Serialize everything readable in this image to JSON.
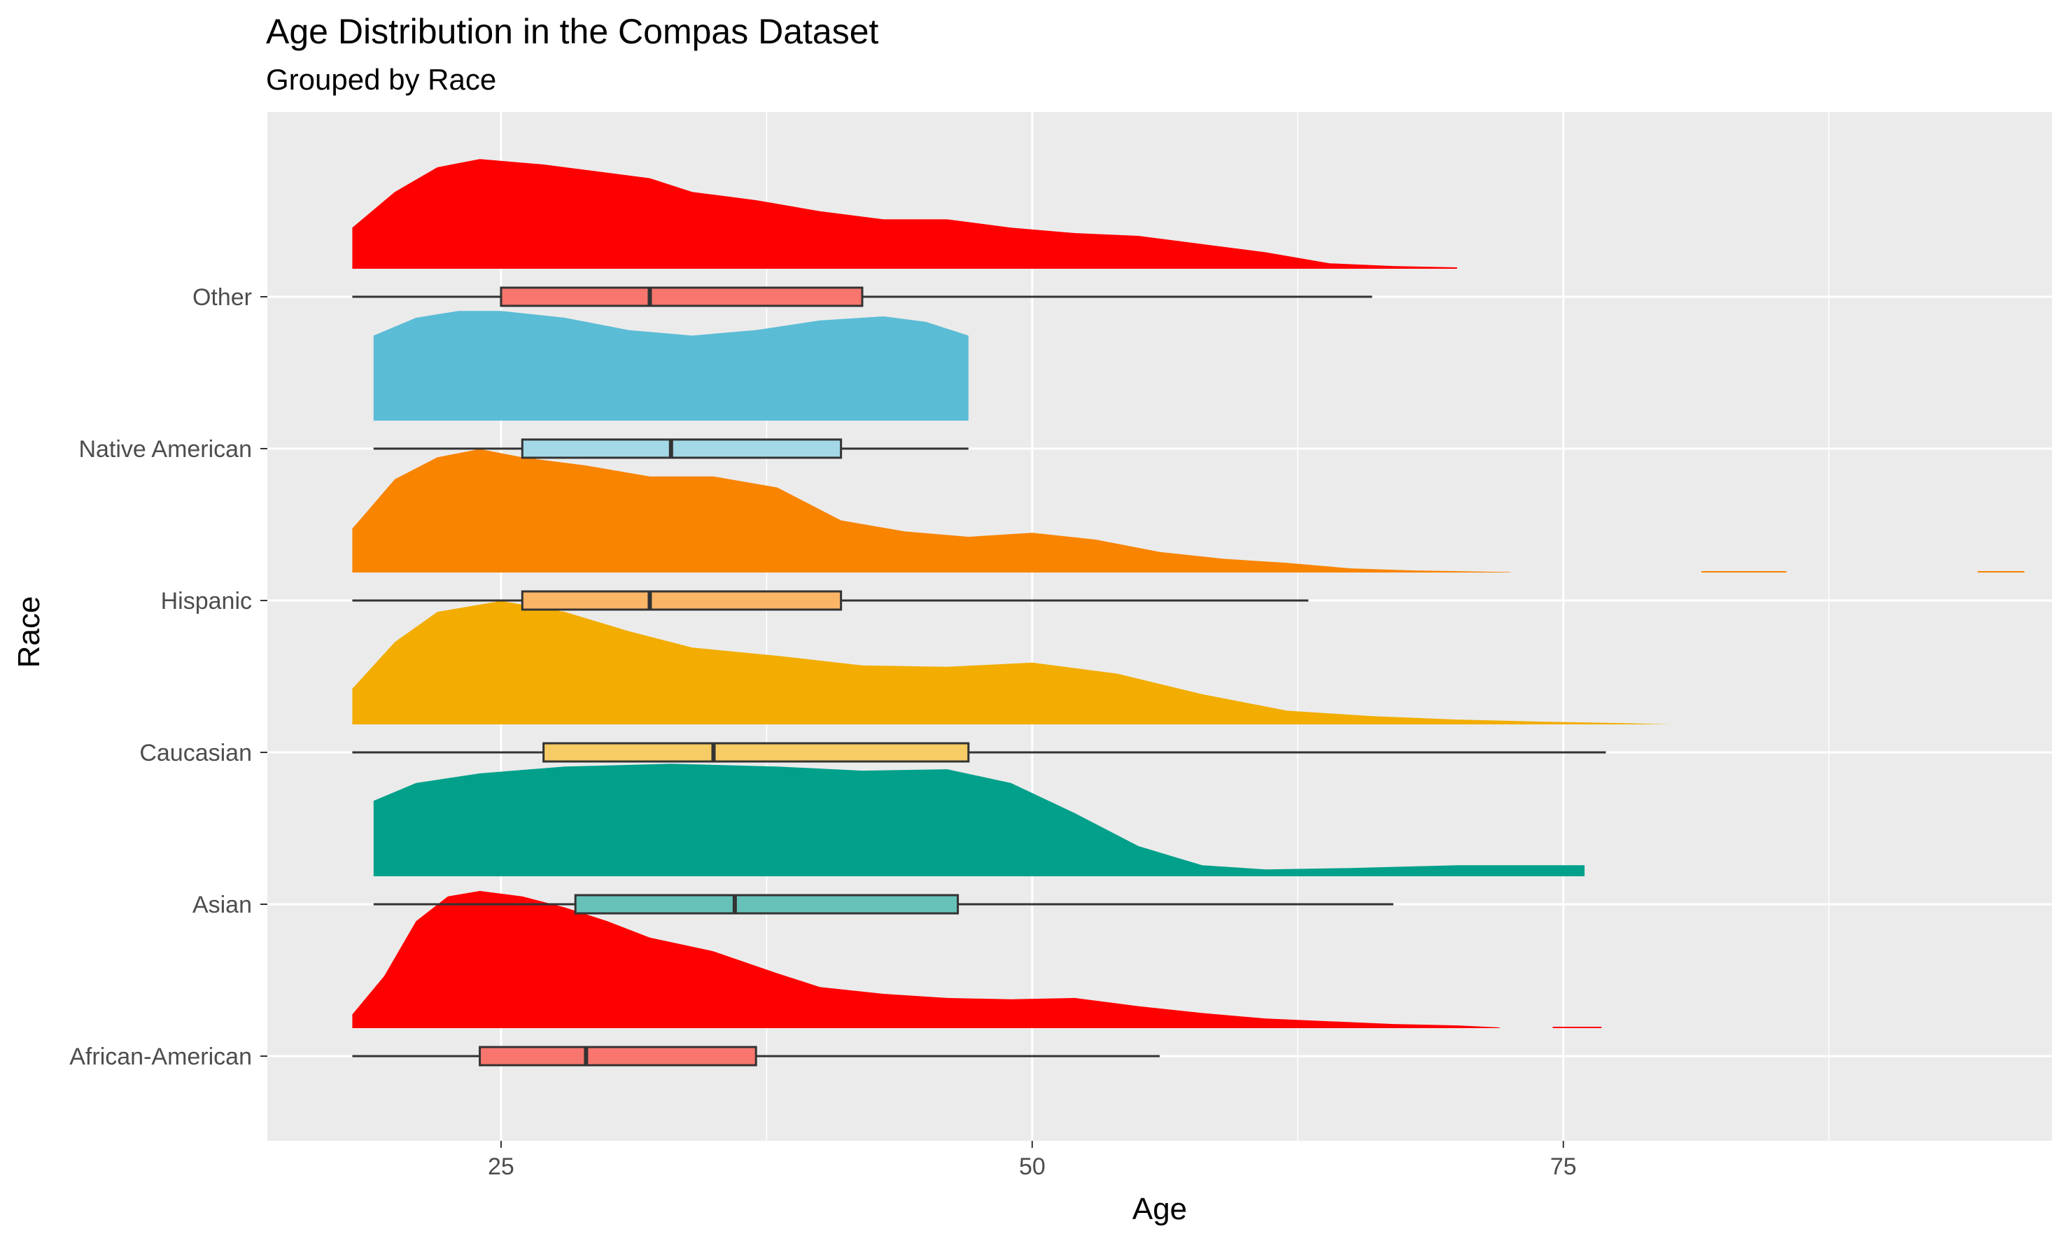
{
  "chart_data": {
    "type": "raincloud",
    "title": "Age Distribution in the Compas Dataset",
    "subtitle": "Grouped by Race",
    "xlabel": "Age",
    "ylabel": "Race",
    "xlim": [
      14,
      98
    ],
    "x_ticks": [
      25,
      50,
      75
    ],
    "x_minor_ticks": [
      37.5,
      62.5,
      87.5
    ],
    "grid": true,
    "legend": "none",
    "categories": [
      "African-American",
      "Asian",
      "Caucasian",
      "Hispanic",
      "Native American",
      "Other"
    ],
    "series": [
      {
        "category": "African-American",
        "box": {
          "min": 18,
          "q1": 24,
          "median": 29,
          "q3": 37,
          "max": 56
        },
        "fill_density": "#FF0000",
        "fill_box": "#F8766D",
        "density": [
          [
            18,
            0.1
          ],
          [
            19.5,
            0.38
          ],
          [
            21,
            0.78
          ],
          [
            22.5,
            0.96
          ],
          [
            24,
            1.0
          ],
          [
            26,
            0.96
          ],
          [
            28,
            0.88
          ],
          [
            30,
            0.78
          ],
          [
            32,
            0.66
          ],
          [
            35,
            0.56
          ],
          [
            38,
            0.4
          ],
          [
            40,
            0.3
          ],
          [
            43,
            0.25
          ],
          [
            46,
            0.22
          ],
          [
            49,
            0.21
          ],
          [
            52,
            0.22
          ],
          [
            55,
            0.16
          ],
          [
            58,
            0.11
          ],
          [
            61,
            0.07
          ],
          [
            64,
            0.05
          ],
          [
            67,
            0.03
          ],
          [
            70,
            0.02
          ],
          [
            72,
            0.005
          ]
        ],
        "density_tail": [
          [
            74.5,
            76.8
          ]
        ]
      },
      {
        "category": "Asian",
        "box": {
          "min": 19,
          "q1": 28.5,
          "median": 36,
          "q3": 46.5,
          "max": 67
        },
        "fill_density": "#00A08A",
        "fill_box": "#66C2B9",
        "density": [
          [
            19,
            0.55
          ],
          [
            21,
            0.68
          ],
          [
            24,
            0.75
          ],
          [
            28,
            0.8
          ],
          [
            33,
            0.82
          ],
          [
            38,
            0.8
          ],
          [
            42,
            0.77
          ],
          [
            46,
            0.78
          ],
          [
            49,
            0.68
          ],
          [
            52,
            0.46
          ],
          [
            55,
            0.22
          ],
          [
            58,
            0.08
          ],
          [
            61,
            0.05
          ],
          [
            65,
            0.06
          ],
          [
            70,
            0.08
          ],
          [
            76,
            0.08
          ]
        ]
      },
      {
        "category": "Caucasian",
        "box": {
          "min": 18,
          "q1": 27,
          "median": 35,
          "q3": 47,
          "max": 77
        },
        "fill_density": "#F2AD00",
        "fill_box": "#F7CC66",
        "density": [
          [
            18,
            0.26
          ],
          [
            20,
            0.6
          ],
          [
            22,
            0.82
          ],
          [
            25,
            0.9
          ],
          [
            28,
            0.82
          ],
          [
            31,
            0.68
          ],
          [
            34,
            0.56
          ],
          [
            38,
            0.5
          ],
          [
            42,
            0.43
          ],
          [
            46,
            0.42
          ],
          [
            50,
            0.45
          ],
          [
            54,
            0.37
          ],
          [
            58,
            0.22
          ],
          [
            62,
            0.1
          ],
          [
            66,
            0.06
          ],
          [
            70,
            0.035
          ],
          [
            74,
            0.02
          ],
          [
            78,
            0.008
          ],
          [
            80,
            0.0
          ]
        ]
      },
      {
        "category": "Hispanic",
        "box": {
          "min": 18,
          "q1": 26,
          "median": 32,
          "q3": 41,
          "max": 63
        },
        "fill_density": "#F98400",
        "fill_box": "#FBB566",
        "density": [
          [
            18,
            0.32
          ],
          [
            20,
            0.68
          ],
          [
            22,
            0.84
          ],
          [
            24,
            0.9
          ],
          [
            26,
            0.84
          ],
          [
            29,
            0.78
          ],
          [
            32,
            0.7
          ],
          [
            35,
            0.7
          ],
          [
            38,
            0.62
          ],
          [
            41,
            0.38
          ],
          [
            44,
            0.3
          ],
          [
            47,
            0.26
          ],
          [
            50,
            0.29
          ],
          [
            53,
            0.24
          ],
          [
            56,
            0.15
          ],
          [
            59,
            0.1
          ],
          [
            62,
            0.07
          ],
          [
            65,
            0.03
          ],
          [
            68,
            0.015
          ],
          [
            71,
            0.007
          ],
          [
            72.5,
            0.003
          ]
        ],
        "density_tail": [
          [
            81.5,
            85.5
          ],
          [
            94.5,
            96.7
          ]
        ]
      },
      {
        "category": "Native American",
        "box": {
          "min": 19,
          "q1": 26,
          "median": 33,
          "q3": 41,
          "max": 47
        },
        "fill_density": "#5BBCD6",
        "fill_box": "#A3D8E6",
        "density": [
          [
            19,
            0.62
          ],
          [
            21,
            0.75
          ],
          [
            23,
            0.8
          ],
          [
            25,
            0.8
          ],
          [
            28,
            0.75
          ],
          [
            31,
            0.66
          ],
          [
            34,
            0.62
          ],
          [
            37,
            0.66
          ],
          [
            40,
            0.73
          ],
          [
            43,
            0.76
          ],
          [
            45,
            0.72
          ],
          [
            47,
            0.62
          ]
        ]
      },
      {
        "category": "Other",
        "box": {
          "min": 18,
          "q1": 25,
          "median": 32,
          "q3": 42,
          "max": 66
        },
        "fill_density": "#FF0000",
        "fill_box": "#F8766D",
        "density": [
          [
            18,
            0.3
          ],
          [
            20,
            0.56
          ],
          [
            22,
            0.74
          ],
          [
            24,
            0.8
          ],
          [
            27,
            0.76
          ],
          [
            30,
            0.7
          ],
          [
            32,
            0.66
          ],
          [
            34,
            0.56
          ],
          [
            37,
            0.5
          ],
          [
            40,
            0.42
          ],
          [
            43,
            0.36
          ],
          [
            46,
            0.36
          ],
          [
            49,
            0.3
          ],
          [
            52,
            0.26
          ],
          [
            55,
            0.24
          ],
          [
            58,
            0.18
          ],
          [
            61,
            0.12
          ],
          [
            64,
            0.04
          ],
          [
            67,
            0.02
          ],
          [
            70,
            0.01
          ]
        ]
      }
    ]
  }
}
